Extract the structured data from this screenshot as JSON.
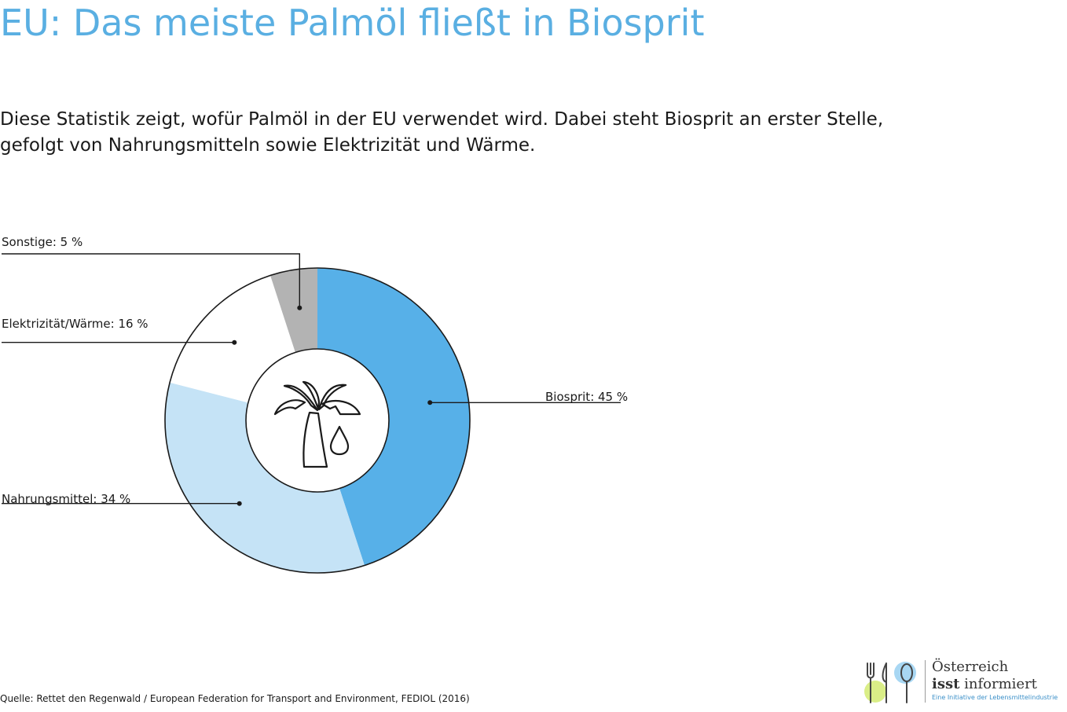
{
  "header": {
    "title": "EU: Das meiste Palmöl fließt in Biosprit",
    "subtitle_line1": "Diese Statistik zeigt, wofür Palmöl in der EU verwendet wird. Dabei steht Biosprit an erster Stelle,",
    "subtitle_line2": "gefolgt von Nahrungsmitteln sowie Elektrizität und Wärme."
  },
  "chart_data": {
    "type": "pie",
    "style": "donut",
    "categories": [
      "Biosprit",
      "Nahrungsmittel",
      "Elektrizität/Wärme",
      "Sonstige"
    ],
    "values": [
      45,
      34,
      16,
      5
    ],
    "labels": [
      "Biosprit: 45 %",
      "Nahrungsmittel: 34 %",
      "Elektrizität/Wärme: 16 %",
      "Sonstige: 5 %"
    ],
    "colors": [
      "#57b0e8",
      "#c5e3f6",
      "#ffffff",
      "#b3b3b3"
    ],
    "center_icon": "palm-oil-icon"
  },
  "footer": {
    "source": "Quelle: Rettet den Regenwald / European Federation for Transport and Environment, FEDIOL (2016)"
  },
  "logo": {
    "line1": "Österreich",
    "line2_bold": "isst",
    "line2_rest": " informiert",
    "line3": "Eine Initiative der Lebensmittelindustrie",
    "icon": "cutlery-icon"
  }
}
